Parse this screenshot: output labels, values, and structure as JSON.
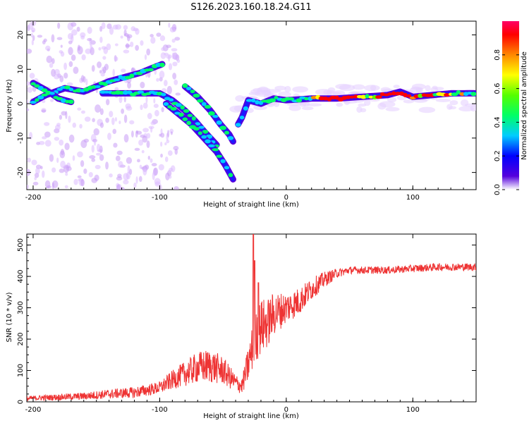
{
  "title": "S126.2023.160.18.24.G11",
  "chart_data": [
    {
      "type": "heatmap",
      "xlabel": "Height of straight line (km)",
      "ylabel": "Frequency (Hz)",
      "xlim": [
        -205,
        150
      ],
      "ylim": [
        -25,
        24
      ],
      "xticks": [
        -200,
        -100,
        0,
        100
      ],
      "yticks": [
        -20,
        -10,
        0,
        10,
        20
      ],
      "colorbar": {
        "label": "Normalized spectral amplitude",
        "range": [
          0,
          1
        ],
        "ticks": [
          "0.0",
          "0.2",
          "0.4",
          "0.6",
          "0.8"
        ],
        "colormap": [
          "#ffffff",
          "#5500dd",
          "#0000ff",
          "#00ccff",
          "#00ff66",
          "#55ff00",
          "#ffff00",
          "#ff8800",
          "#ff0000",
          "#ff0066"
        ]
      },
      "ridges": [
        {
          "name": "",
          "points": [
            [
              -200,
              0.5
            ],
            [
              -190,
              2.5
            ],
            [
              -175,
              4.5
            ],
            [
              -160,
              3.5
            ],
            [
              -150,
              5
            ],
            [
              -140,
              6.5
            ],
            [
              -125,
              8
            ],
            [
              -115,
              9
            ],
            [
              -105,
              10.5
            ],
            [
              -98,
              11.5
            ]
          ]
        },
        {
          "name": "",
          "points": [
            [
              -200,
              6
            ],
            [
              -190,
              4
            ],
            [
              -180,
              1.5
            ],
            [
              -170,
              0.5
            ]
          ]
        },
        {
          "name": "",
          "points": [
            [
              -145,
              3
            ],
            [
              -130,
              3
            ],
            [
              -115,
              3
            ],
            [
              -100,
              3
            ],
            [
              -90,
              1
            ],
            [
              -80,
              -2
            ],
            [
              -72,
              -5
            ],
            [
              -65,
              -8
            ],
            [
              -60,
              -10
            ],
            [
              -55,
              -12
            ]
          ]
        },
        {
          "name": "",
          "points": [
            [
              -80,
              5
            ],
            [
              -70,
              2
            ],
            [
              -60,
              -2
            ],
            [
              -52,
              -6
            ],
            [
              -45,
              -9
            ],
            [
              -42,
              -11
            ]
          ]
        },
        {
          "name": "",
          "points": [
            [
              -95,
              0
            ],
            [
              -85,
              -3
            ],
            [
              -75,
              -6
            ],
            [
              -65,
              -10
            ],
            [
              -55,
              -14
            ],
            [
              -48,
              -18
            ],
            [
              -45,
              -20
            ],
            [
              -42,
              -22
            ]
          ]
        },
        {
          "name": "",
          "points": [
            [
              -38,
              -6
            ],
            [
              -35,
              -4
            ],
            [
              -30,
              1
            ],
            [
              -20,
              0
            ],
            [
              -10,
              1.5
            ],
            [
              0,
              1
            ],
            [
              20,
              1.5
            ],
            [
              40,
              1.5
            ],
            [
              60,
              2
            ],
            [
              80,
              2.5
            ],
            [
              90,
              3.5
            ],
            [
              100,
              2
            ],
            [
              115,
              2.5
            ],
            [
              130,
              3
            ],
            [
              150,
              3
            ]
          ]
        }
      ]
    },
    {
      "type": "line",
      "xlabel": "Height of straight line (km)",
      "ylabel": "SNR (10 * v/v)",
      "xlim": [
        -205,
        150
      ],
      "ylim": [
        0,
        535
      ],
      "xticks": [
        -200,
        -100,
        0,
        100
      ],
      "yticks": [
        0,
        100,
        200,
        300,
        400,
        500
      ],
      "series": [
        {
          "name": "",
          "color": "#ee3333",
          "x": [
            -205,
            -200,
            -180,
            -160,
            -140,
            -120,
            -100,
            -90,
            -80,
            -70,
            -60,
            -50,
            -40,
            -35,
            -30,
            -25,
            -20,
            -15,
            -10,
            -5,
            0,
            10,
            20,
            30,
            40,
            50,
            60,
            80,
            100,
            120,
            150
          ],
          "y": [
            10,
            12,
            15,
            18,
            25,
            30,
            45,
            70,
            90,
            110,
            115,
            100,
            60,
            50,
            120,
            200,
            240,
            250,
            280,
            290,
            300,
            320,
            360,
            390,
            410,
            420,
            420,
            420,
            425,
            430,
            430
          ],
          "noise": [
            8,
            8,
            10,
            12,
            15,
            18,
            20,
            30,
            40,
            50,
            55,
            45,
            30,
            25,
            60,
            80,
            90,
            80,
            70,
            60,
            50,
            45,
            35,
            25,
            15,
            12,
            12,
            12,
            12,
            12,
            12
          ],
          "spikes": [
            [
              -26,
              535
            ],
            [
              -25,
              450
            ],
            [
              -22,
              380
            ]
          ]
        }
      ]
    }
  ]
}
